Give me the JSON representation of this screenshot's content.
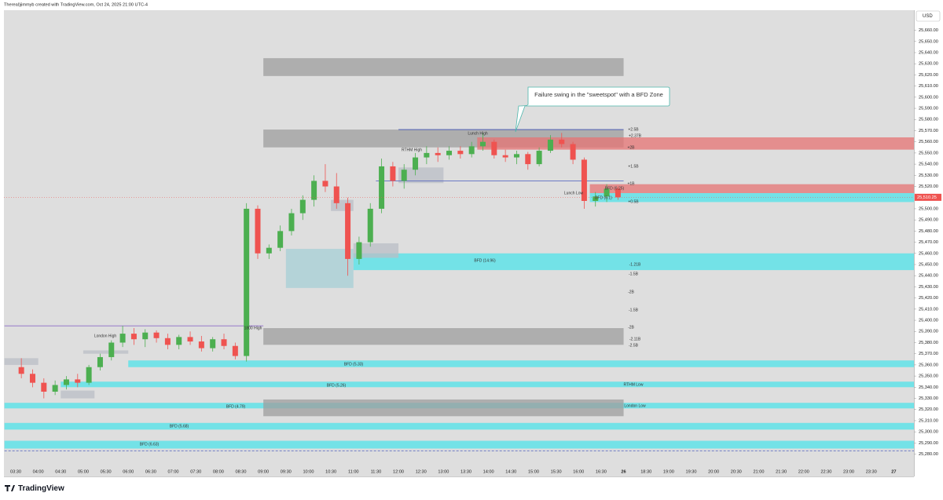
{
  "header": "Thereal)jimmyb created with TradingView.com, Oct 24, 2025 21:00 UTC-4",
  "logo": "TradingView",
  "currency": "USD",
  "callout": "Failure swing in the \"sweetspot\" with a BFD Zone",
  "chart_data": {
    "type": "candlestick",
    "ylim": [
      25260,
      25678
    ],
    "yticks": [
      {
        "value": 25280,
        "label": "25,280.00"
      },
      {
        "value": 25290,
        "label": "25,290.00"
      },
      {
        "value": 25300,
        "label": "25,300.00"
      },
      {
        "value": 25310,
        "label": "25,310.00"
      },
      {
        "value": 25320,
        "label": "25,320.00"
      },
      {
        "value": 25330,
        "label": "25,330.00"
      },
      {
        "value": 25340,
        "label": "25,340.00"
      },
      {
        "value": 25350,
        "label": "25,350.00"
      },
      {
        "value": 25360,
        "label": "25,360.00"
      },
      {
        "value": 25370,
        "label": "25,370.00"
      },
      {
        "value": 25380,
        "label": "25,380.00"
      },
      {
        "value": 25390,
        "label": "25,390.00"
      },
      {
        "value": 25400,
        "label": "25,400.00"
      },
      {
        "value": 25410,
        "label": "25,410.00"
      },
      {
        "value": 25420,
        "label": "25,420.00"
      },
      {
        "value": 25430,
        "label": "25,430.00"
      },
      {
        "value": 25440,
        "label": "25,440.00"
      },
      {
        "value": 25450,
        "label": "25,450.00"
      },
      {
        "value": 25460,
        "label": "25,460.00"
      },
      {
        "value": 25470,
        "label": "25,470.00"
      },
      {
        "value": 25480,
        "label": "25,480.00"
      },
      {
        "value": 25490,
        "label": "25,490.00"
      },
      {
        "value": 25500,
        "label": "25,500.00"
      },
      {
        "value": 25520,
        "label": "25,520.00"
      },
      {
        "value": 25530,
        "label": "25,530.00"
      },
      {
        "value": 25540,
        "label": "25,540.00"
      },
      {
        "value": 25550,
        "label": "25,550.00"
      },
      {
        "value": 25560,
        "label": "25,560.00"
      },
      {
        "value": 25570,
        "label": "25,570.00"
      },
      {
        "value": 25580,
        "label": "25,580.00"
      },
      {
        "value": 25590,
        "label": "25,590.00"
      },
      {
        "value": 25600,
        "label": "25,600.00"
      },
      {
        "value": 25610,
        "label": "25,610.00"
      },
      {
        "value": 25620,
        "label": "25,620.00"
      },
      {
        "value": 25630,
        "label": "25,630.00"
      },
      {
        "value": 25640,
        "label": "25,640.00"
      },
      {
        "value": 25650,
        "label": "25,650.00"
      },
      {
        "value": 25660,
        "label": "25,660.00"
      }
    ],
    "last_price": {
      "value": 25510.25,
      "label": "25,510.25"
    },
    "xticks": [
      "03:30",
      "04:00",
      "04:30",
      "05:00",
      "05:30",
      "06:00",
      "06:30",
      "07:00",
      "07:30",
      "08:00",
      "08:30",
      "09:00",
      "09:30",
      "10:00",
      "10:30",
      "11:00",
      "11:30",
      "12:00",
      "12:30",
      "13:00",
      "13:30",
      "14:00",
      "14:30",
      "15:00",
      "15:30",
      "16:00",
      "16:30",
      "26",
      "18:30",
      "19:00",
      "19:30",
      "20:00",
      "20:30",
      "21:00",
      "21:30",
      "22:00",
      "22:30",
      "23:00",
      "23:30",
      "27"
    ],
    "up_color": "#4caf50",
    "down_color": "#ef5350",
    "x": [
      "03:30",
      "03:45",
      "04:00",
      "04:15",
      "04:30",
      "04:45",
      "05:00",
      "05:15",
      "05:30",
      "05:45",
      "06:00",
      "06:15",
      "06:30",
      "06:45",
      "07:00",
      "07:15",
      "07:30",
      "07:45",
      "08:00",
      "08:15",
      "08:30",
      "08:45",
      "09:00",
      "09:15",
      "09:30",
      "09:45",
      "10:00",
      "10:15",
      "10:30",
      "10:45",
      "11:00",
      "11:15",
      "11:30",
      "11:45",
      "12:00",
      "12:15",
      "12:30",
      "12:45",
      "13:00",
      "13:15",
      "13:30",
      "13:45",
      "14:00",
      "14:15",
      "14:30",
      "14:45",
      "15:00",
      "15:15",
      "15:30",
      "15:45",
      "16:00",
      "16:15",
      "16:30",
      "16:45"
    ],
    "open": [
      25358,
      25352,
      25344,
      25336,
      25342,
      25347,
      25344,
      25358,
      25367,
      25380,
      25388,
      25383,
      25389,
      25384,
      25378,
      25385,
      25381,
      25375,
      25383,
      25377,
      25368,
      25500,
      25460,
      25465,
      25480,
      25496,
      25508,
      25525,
      25520,
      25505,
      25455,
      25470,
      25500,
      25538,
      25525,
      25535,
      25546,
      25550,
      25548,
      25552,
      25549,
      25556,
      25560,
      25548,
      25546,
      25549,
      25540,
      25552,
      25562,
      25558,
      25544,
      25507,
      25511,
      25518
    ],
    "high": [
      25366,
      25356,
      25348,
      25346,
      25350,
      25352,
      25360,
      25370,
      25382,
      25395,
      25393,
      25392,
      25391,
      25388,
      25387,
      25390,
      25386,
      25385,
      25388,
      25380,
      25505,
      25503,
      25468,
      25485,
      25500,
      25512,
      25530,
      25540,
      25532,
      25510,
      25475,
      25505,
      25545,
      25542,
      25540,
      25550,
      25556,
      25555,
      25556,
      25556,
      25560,
      25568,
      25562,
      25553,
      25552,
      25551,
      25555,
      25566,
      25568,
      25560,
      25546,
      25515,
      25522,
      25520
    ],
    "low": [
      25348,
      25340,
      25330,
      25333,
      25338,
      25340,
      25342,
      25355,
      25364,
      25376,
      25378,
      25376,
      25380,
      25374,
      25374,
      25378,
      25372,
      25372,
      25374,
      25365,
      25363,
      25455,
      25455,
      25462,
      25476,
      25490,
      25502,
      25515,
      25500,
      25440,
      25450,
      25466,
      25496,
      25520,
      25518,
      25530,
      25540,
      25542,
      25544,
      25545,
      25546,
      25552,
      25545,
      25542,
      25540,
      25535,
      25538,
      25550,
      25555,
      25540,
      25500,
      25502,
      25506,
      25508
    ],
    "close": [
      25352,
      25344,
      25336,
      25342,
      25347,
      25344,
      25358,
      25367,
      25380,
      25388,
      25383,
      25389,
      25384,
      25378,
      25385,
      25381,
      25375,
      25383,
      25377,
      25368,
      25500,
      25460,
      25465,
      25480,
      25496,
      25508,
      25525,
      25520,
      25505,
      25455,
      25470,
      25500,
      25538,
      25525,
      25535,
      25546,
      25550,
      25548,
      25552,
      25549,
      25556,
      25560,
      25548,
      25546,
      25549,
      25540,
      25552,
      25562,
      25558,
      25544,
      25507,
      25511,
      25518,
      25510.25
    ],
    "zones": [
      {
        "from": "09:00",
        "to": "17:00",
        "top": 25635,
        "bottom": 25619,
        "color": "#9e9e9e"
      },
      {
        "from": "09:00",
        "to": "17:00",
        "top": 25571,
        "bottom": 25555,
        "color": "#9e9e9e"
      },
      {
        "from": "13:45",
        "extend": true,
        "top": 25564,
        "bottom": 25553,
        "color": "#e57373"
      },
      {
        "from": "16:15",
        "extend": true,
        "top": 25522,
        "bottom": 25514,
        "color": "#e57373"
      },
      {
        "from": "16:15",
        "extend": true,
        "top": 25514,
        "bottom": 25506,
        "color": "#4fe3ea"
      },
      {
        "from": "11:00",
        "extend": true,
        "top": 25460,
        "bottom": 25445,
        "color": "#4fe3ea"
      },
      {
        "from": "09:30",
        "to": "11:00",
        "top": 25464,
        "bottom": 25429,
        "color": "#a6cfd6"
      },
      {
        "from": "09:00",
        "to": "17:00",
        "top": 25393,
        "bottom": 25378,
        "color": "#9e9e9e"
      },
      {
        "from": "06:00",
        "extend": true,
        "top": 25364,
        "bottom": 25358,
        "color": "#4fe3ea"
      },
      {
        "from": "04:30",
        "extend": true,
        "top": 25345,
        "bottom": 25340,
        "color": "#4fe3ea"
      },
      {
        "from": "03:15",
        "extend": true,
        "top": 25326,
        "bottom": 25321,
        "color": "#4fe3ea"
      },
      {
        "from": "09:00",
        "to": "17:00",
        "top": 25329,
        "bottom": 25314,
        "color": "#9e9e9e"
      },
      {
        "from": "03:15",
        "extend": true,
        "top": 25308,
        "bottom": 25302,
        "color": "#4fe3ea"
      },
      {
        "from": "03:15",
        "extend": true,
        "top": 25292,
        "bottom": 25285,
        "color": "#4fe3ea"
      },
      {
        "from": "03:15",
        "to": "04:00",
        "top": 25366,
        "bottom": 25360,
        "color": "#b9bec6"
      },
      {
        "from": "04:30",
        "to": "05:15",
        "top": 25337,
        "bottom": 25330,
        "color": "#b9bec6"
      },
      {
        "from": "05:00",
        "to": "06:00",
        "top": 25373,
        "bottom": 25370,
        "color": "#b9bec6"
      },
      {
        "from": "10:30",
        "to": "11:00",
        "top": 25508,
        "bottom": 25498,
        "color": "#b9bec6"
      },
      {
        "from": "11:00",
        "to": "12:00",
        "top": 25469,
        "bottom": 25456,
        "color": "#b9bec6"
      },
      {
        "from": "12:00",
        "to": "13:00",
        "top": 25537,
        "bottom": 25523,
        "color": "#b9bec6"
      }
    ],
    "lines": [
      {
        "from": "03:15",
        "to": "09:00",
        "price": 25395,
        "color": "#7e57c2"
      },
      {
        "from": "12:00",
        "to": "17:00",
        "price": 25571,
        "color": "#3f51b5"
      },
      {
        "from": "11:30",
        "to": "17:00",
        "price": 25525,
        "color": "#5c6bc0"
      },
      {
        "from": "03:15",
        "extend": true,
        "price": 25283,
        "color": "#5c6bc0",
        "dash": true
      }
    ],
    "labels": [
      "BFD (14.96)",
      "BFD (5.33)",
      "BFD (5.26)",
      "BFD (4.79)",
      "BFD (5.68)",
      "BFD (6.63)",
      "BFD (6.25)",
      "BFD (6.1)",
      "Lunch High",
      "RTHM High",
      "Lunch Low",
      "1800 High",
      "London High",
      "RTHM Low",
      "London Low",
      "+2.5B",
      "+2.37B",
      "+2B",
      "+1.5B",
      "+1B",
      "+0.5B",
      "-1.21B",
      "-1.5B",
      "-2B",
      "-1.5B",
      "-2B",
      "-2.11B",
      "-2.5B"
    ]
  }
}
